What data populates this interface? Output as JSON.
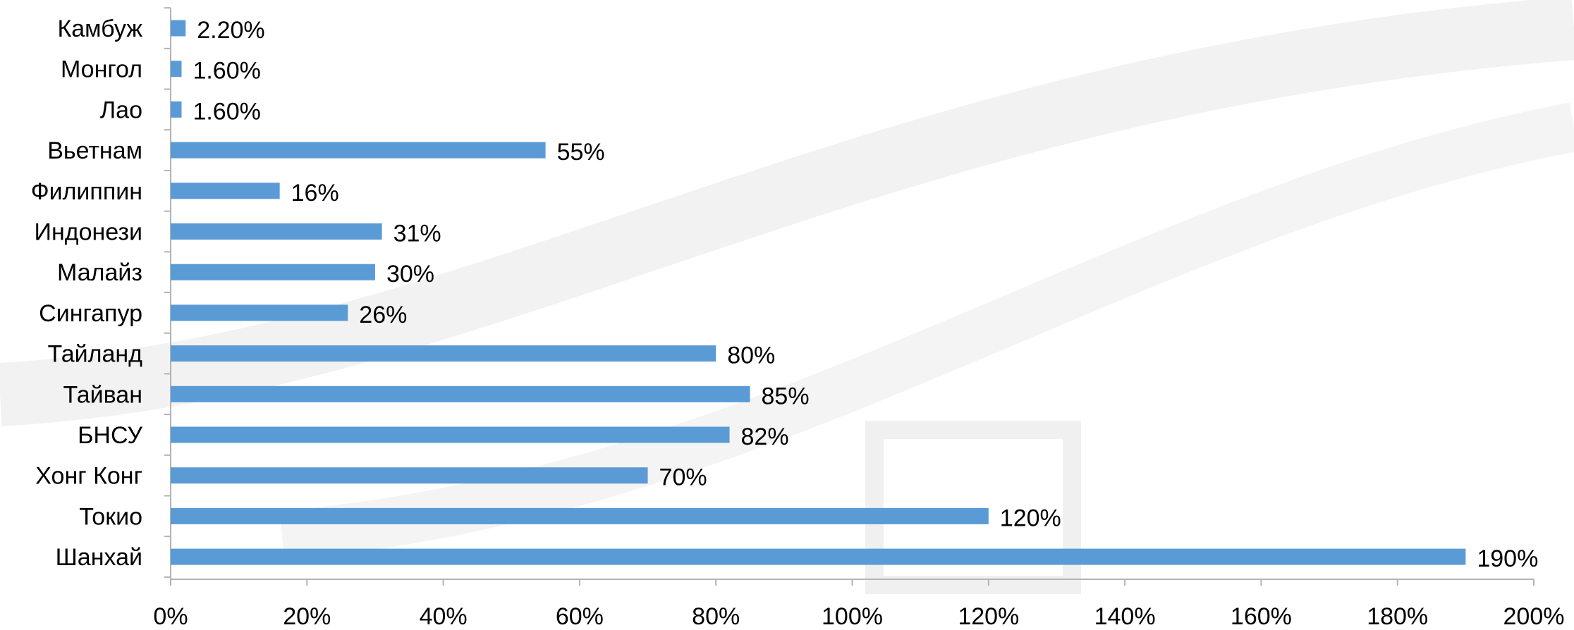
{
  "chart_data": {
    "type": "bar",
    "orientation": "horizontal",
    "categories": [
      "Камбуж",
      "Монгол",
      "Лао",
      "Вьетнам",
      "Филиппин",
      "Индонези",
      "Малайз",
      "Сингапур",
      "Тайланд",
      "Тайван",
      "БНСУ",
      "Хонг Конг",
      "Токио",
      "Шанхай"
    ],
    "values": [
      2.2,
      1.6,
      1.6,
      55,
      16,
      31,
      30,
      26,
      80,
      85,
      82,
      70,
      120,
      190
    ],
    "data_labels": [
      "2.20%",
      "1.60%",
      "1.60%",
      "55%",
      "16%",
      "31%",
      "30%",
      "26%",
      "80%",
      "85%",
      "82%",
      "70%",
      "120%",
      "190%"
    ],
    "x_ticks": [
      "0%",
      "20%",
      "40%",
      "60%",
      "80%",
      "100%",
      "120%",
      "140%",
      "160%",
      "180%",
      "200%"
    ],
    "xlim": [
      0,
      200
    ],
    "grid": false,
    "legend": "none",
    "bar_color": "#5b9bd5"
  }
}
